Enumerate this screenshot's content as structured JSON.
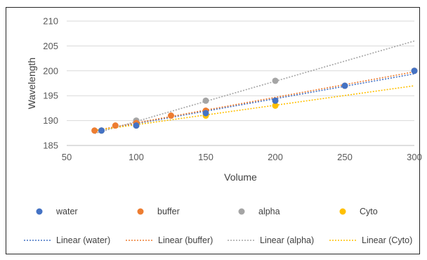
{
  "chart_data": {
    "type": "scatter",
    "title": "",
    "xlabel": "Volume",
    "ylabel": "Wavelength",
    "xlim": [
      50,
      300
    ],
    "ylim": [
      185,
      210
    ],
    "x_ticks": [
      50,
      100,
      150,
      200,
      250,
      300
    ],
    "y_ticks": [
      185,
      190,
      195,
      200,
      205,
      210
    ],
    "grid": "horizontal",
    "legend_position": "bottom",
    "series": [
      {
        "name": "water",
        "color": "#4472C4",
        "points": [
          [
            75,
            188
          ],
          [
            100,
            189
          ],
          [
            150,
            191.5
          ],
          [
            200,
            194
          ],
          [
            250,
            197
          ],
          [
            300,
            200
          ]
        ],
        "trend": [
          [
            70,
            187.9
          ],
          [
            300,
            199.4
          ]
        ]
      },
      {
        "name": "buffer",
        "color": "#ED7D31",
        "points": [
          [
            70,
            188
          ],
          [
            85,
            189
          ],
          [
            100,
            189.5
          ],
          [
            125,
            191
          ],
          [
            150,
            192
          ],
          [
            200,
            194
          ],
          [
            250,
            197
          ],
          [
            300,
            200
          ]
        ],
        "trend": [
          [
            70,
            188
          ],
          [
            300,
            199.8
          ]
        ]
      },
      {
        "name": "alpha",
        "color": "#A5A5A5",
        "points": [
          [
            75,
            188
          ],
          [
            100,
            190
          ],
          [
            150,
            194
          ],
          [
            200,
            198
          ]
        ],
        "trend": [
          [
            70,
            187.4
          ],
          [
            300,
            206
          ]
        ]
      },
      {
        "name": "Cyto",
        "color": "#FFC000",
        "points": [
          [
            75,
            188
          ],
          [
            100,
            189
          ],
          [
            150,
            191
          ],
          [
            200,
            193
          ]
        ],
        "trend": [
          [
            70,
            188
          ],
          [
            300,
            197
          ]
        ]
      }
    ],
    "legend": {
      "markers": [
        "water",
        "buffer",
        "alpha",
        "Cyto"
      ],
      "trendlines": [
        "Linear (water)",
        "Linear (buffer)",
        "Linear (alpha)",
        "Linear (Cyto)"
      ]
    }
  }
}
